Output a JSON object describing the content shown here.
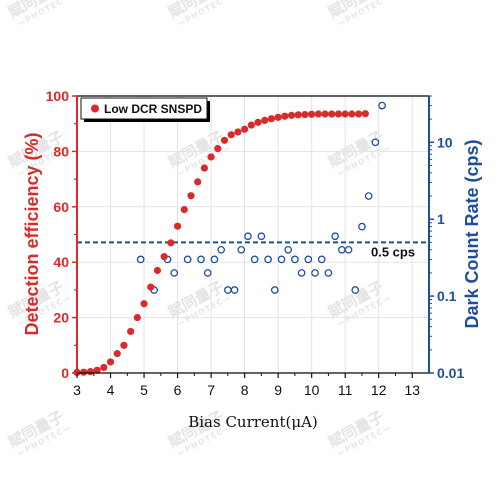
{
  "chart_data": {
    "type": "scatter",
    "xlabel": "Bias Current(μA)",
    "ylabel_left": "Detection efficiency (%)",
    "ylabel_right": "Dark Count Rate (cps)",
    "xlim": [
      3,
      13.5
    ],
    "xticks": [
      3,
      4,
      5,
      6,
      7,
      8,
      9,
      10,
      11,
      12,
      13
    ],
    "ylim_left": [
      0,
      100
    ],
    "yticks_left": [
      0,
      20,
      40,
      60,
      80,
      100
    ],
    "yscale_right": "log",
    "ylim_right": [
      0.01,
      40
    ],
    "yticks_right": [
      0.01,
      0.1,
      1,
      10
    ],
    "ytick_labels_right": [
      "0.01",
      "0.1",
      "1",
      "10"
    ],
    "grid": true,
    "legend": {
      "position": "top-left",
      "entries": [
        "Low DCR SNSPD"
      ]
    },
    "colors": {
      "efficiency": "#d92b2b",
      "dcr": "#1f4e9c",
      "threshold": "#1f4e9c"
    },
    "series": [
      {
        "name": "Low DCR SNSPD",
        "axis": "left",
        "marker": "filled-circle",
        "x": [
          3.0,
          3.2,
          3.4,
          3.6,
          3.8,
          4.0,
          4.2,
          4.4,
          4.6,
          4.8,
          5.0,
          5.2,
          5.4,
          5.6,
          5.8,
          6.0,
          6.2,
          6.4,
          6.6,
          6.8,
          7.0,
          7.2,
          7.4,
          7.6,
          7.8,
          8.0,
          8.2,
          8.4,
          8.6,
          8.8,
          9.0,
          9.2,
          9.4,
          9.6,
          9.8,
          10.0,
          10.2,
          10.4,
          10.6,
          10.8,
          11.0,
          11.2,
          11.4,
          11.6
        ],
        "y": [
          0.2,
          0.3,
          0.5,
          1,
          2,
          4,
          7,
          10,
          15,
          20,
          25,
          31,
          37,
          42,
          47,
          53,
          59,
          64,
          69,
          74,
          78,
          81,
          84,
          86,
          87,
          88,
          89.5,
          90.5,
          91.2,
          91.8,
          92.3,
          92.7,
          93.0,
          93.2,
          93.3,
          93.4,
          93.5,
          93.5,
          93.5,
          93.5,
          93.5,
          93.5,
          93.5,
          93.6
        ]
      },
      {
        "name": "",
        "axis": "right",
        "marker": "open-circle",
        "x": [
          4.9,
          5.3,
          5.7,
          5.9,
          6.3,
          6.7,
          6.9,
          7.1,
          7.3,
          7.5,
          7.7,
          7.9,
          8.1,
          8.3,
          8.5,
          8.7,
          8.9,
          9.1,
          9.3,
          9.5,
          9.7,
          9.9,
          10.1,
          10.3,
          10.5,
          10.7,
          10.9,
          11.1,
          11.3,
          11.5,
          11.7,
          11.9,
          12.1
        ],
        "y": [
          0.3,
          0.12,
          0.3,
          0.2,
          0.3,
          0.3,
          0.2,
          0.3,
          0.4,
          0.12,
          0.12,
          0.4,
          0.6,
          0.3,
          0.6,
          0.3,
          0.12,
          0.3,
          0.4,
          0.3,
          0.2,
          0.3,
          0.2,
          0.3,
          0.2,
          0.6,
          0.4,
          0.4,
          0.12,
          0.8,
          2.0,
          10,
          30
        ]
      }
    ],
    "threshold": {
      "axis": "right",
      "value": 0.5,
      "label": "0.5 cps",
      "style": "dashed"
    }
  },
  "watermark": {
    "main": "賦同量子",
    "sub": "—PHOTEC—"
  }
}
